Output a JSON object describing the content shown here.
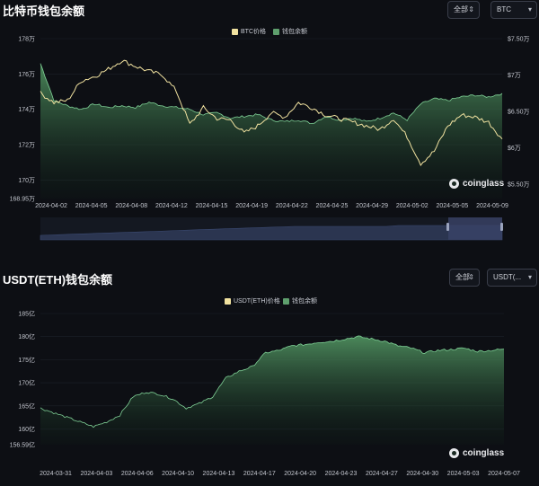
{
  "btc_panel": {
    "title": "比特币钱包余额",
    "range_select": "全部",
    "coin_select": "BTC",
    "legend": {
      "price": "BTC价格",
      "balance": "钱包余额"
    },
    "watermark": "coinglass"
  },
  "usdt_panel": {
    "title": "USDT(ETH)钱包余额",
    "range_select": "全部",
    "coin_select": "USDT(...",
    "legend": {
      "price": "USDT(ETH)价格",
      "balance": "钱包余额"
    },
    "watermark": "coinglass"
  },
  "colors": {
    "price_line": "#f1e2a0",
    "balance_fill": "#4f8f5f",
    "balance_line": "#7fd196",
    "navigator": "#2b3550"
  },
  "chart_data": [
    {
      "type": "area",
      "name": "btc_wallet_balance",
      "x_labels": [
        "2024-04-02",
        "2024-04-05",
        "2024-04-08",
        "2024-04-12",
        "2024-04-15",
        "2024-04-19",
        "2024-04-22",
        "2024-04-25",
        "2024-04-29",
        "2024-05-02",
        "2024-05-05",
        "2024-05-09"
      ],
      "y_left_ticks": [
        "178万",
        "176万",
        "174万",
        "172万",
        "170万",
        "168.95万"
      ],
      "y_left_range": [
        168.95,
        178
      ],
      "y_right_ticks": [
        "$7.50万",
        "$7万",
        "$6.50万",
        "$6万",
        "$5.50万"
      ],
      "y_right_range": [
        5.3,
        7.5
      ],
      "series": [
        {
          "name": "钱包余额",
          "unit": "万",
          "values": [
            176.6,
            174.5,
            174.2,
            174.0,
            174.3,
            174.1,
            174.2,
            174.1,
            174.4,
            174.2,
            174.1,
            174.0,
            173.7,
            173.8,
            173.5,
            173.6,
            173.7,
            173.4,
            173.3,
            173.4,
            173.2,
            173.6,
            173.4,
            173.5,
            173.3,
            173.5,
            173.8,
            173.4,
            174.3,
            174.6,
            174.5,
            174.7,
            174.8,
            174.7,
            174.9
          ]
        },
        {
          "name": "BTC价格",
          "unit": "$万",
          "values": [
            6.75,
            6.62,
            6.65,
            6.92,
            6.98,
            7.08,
            7.2,
            7.12,
            7.05,
            7.0,
            6.78,
            6.32,
            6.55,
            6.4,
            6.38,
            6.2,
            6.3,
            6.48,
            6.42,
            6.62,
            6.55,
            6.45,
            6.4,
            6.35,
            6.3,
            6.25,
            6.4,
            6.15,
            5.78,
            5.95,
            6.3,
            6.45,
            6.42,
            6.35,
            6.12
          ]
        }
      ]
    },
    {
      "type": "area",
      "name": "usdt_eth_wallet_balance",
      "x_labels": [
        "2024-03-31",
        "2024-04-03",
        "2024-04-06",
        "2024-04-10",
        "2024-04-13",
        "2024-04-17",
        "2024-04-20",
        "2024-04-23",
        "2024-04-27",
        "2024-04-30",
        "2024-05-03",
        "2024-05-07"
      ],
      "y_left_ticks": [
        "185亿",
        "180亿",
        "175亿",
        "170亿",
        "165亿",
        "160亿",
        "156.59亿"
      ],
      "y_left_range": [
        156.59,
        185
      ],
      "series": [
        {
          "name": "钱包余额",
          "unit": "亿",
          "values": [
            164.5,
            163.5,
            162.5,
            161.5,
            160.5,
            161.5,
            163.0,
            167.0,
            168.0,
            167.5,
            166.5,
            164.5,
            165.5,
            167.0,
            171.0,
            172.5,
            173.5,
            176.5,
            177.0,
            178.0,
            178.3,
            178.8,
            179.0,
            179.5,
            180.0,
            179.5,
            179.0,
            178.0,
            177.5,
            176.5,
            177.0,
            177.2,
            177.5,
            176.8,
            177.0,
            177.3
          ]
        }
      ]
    }
  ]
}
